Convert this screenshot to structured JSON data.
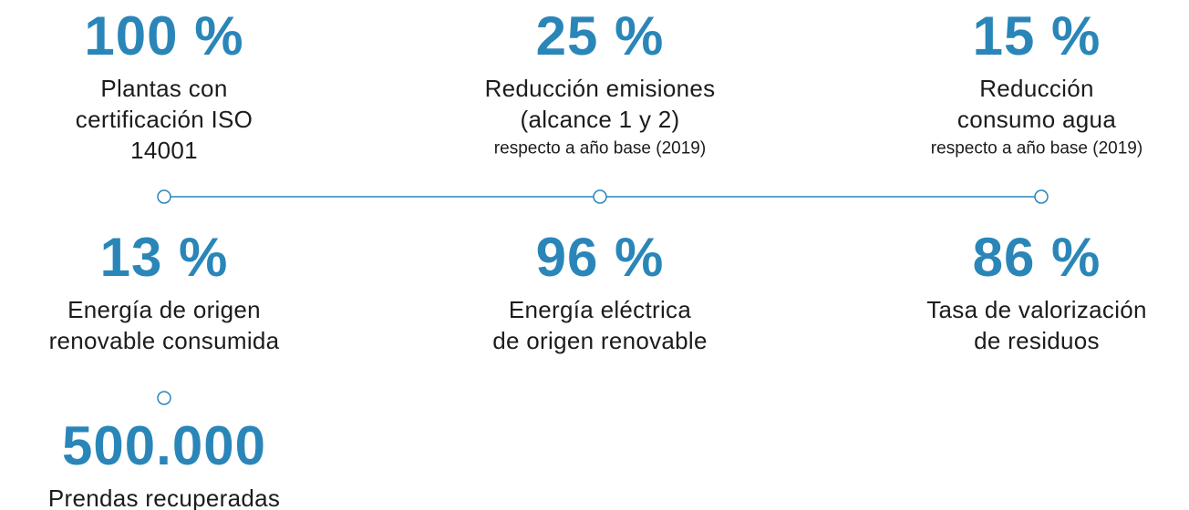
{
  "items": [
    {
      "value": "100 %",
      "lines": [
        "Plantas con",
        "certificación ISO",
        "14001"
      ]
    },
    {
      "value": "25 %",
      "lines": [
        "Reducción emisiones",
        "(alcance 1 y 2)"
      ],
      "note": "respecto a año base (2019)"
    },
    {
      "value": "15 %",
      "lines": [
        "Reducción",
        "consumo agua"
      ],
      "note": "respecto a año base (2019)"
    },
    {
      "value": "13 %",
      "lines": [
        "Energía de origen",
        "renovable consumida"
      ]
    },
    {
      "value": "96 %",
      "lines": [
        "Energía eléctrica",
        "de origen renovable"
      ]
    },
    {
      "value": "86 %",
      "lines": [
        "Tasa de valorización",
        "de residuos"
      ]
    },
    {
      "value": "500.000",
      "lines": [
        "Prendas recuperadas"
      ]
    }
  ]
}
